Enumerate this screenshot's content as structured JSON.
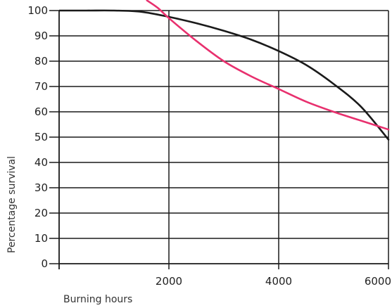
{
  "chart_data": {
    "type": "line",
    "xlabel": "Burning hours",
    "ylabel": "Percentage survival",
    "xlim": [
      0,
      6000
    ],
    "ylim": [
      0,
      100
    ],
    "x_ticks": [
      2000,
      4000,
      6000
    ],
    "x_tick_labels": [
      "2000",
      "4000",
      "6000"
    ],
    "y_ticks": [
      0,
      10,
      20,
      30,
      40,
      50,
      60,
      70,
      80,
      90,
      100
    ],
    "y_tick_labels": [
      "0",
      "10",
      "20",
      "30",
      "40",
      "50",
      "60",
      "70",
      "80",
      "90",
      "100"
    ],
    "grid": true,
    "series": [
      {
        "color": "#1a1a1a",
        "x": [
          0,
          500,
          1000,
          1500,
          2000,
          2500,
          3000,
          3500,
          4000,
          4500,
          5000,
          5500,
          6000
        ],
        "y": [
          100,
          100,
          100,
          99.5,
          97.5,
          95,
          92,
          88.5,
          84,
          78.5,
          71,
          62,
          49
        ]
      },
      {
        "color": "#e8306e",
        "x": [
          1600,
          1800,
          2000,
          2500,
          3000,
          3500,
          4000,
          4500,
          5000,
          5500,
          6000
        ],
        "y": [
          104,
          101,
          97,
          88,
          80,
          74,
          69,
          64,
          60,
          56.5,
          53
        ]
      }
    ]
  }
}
